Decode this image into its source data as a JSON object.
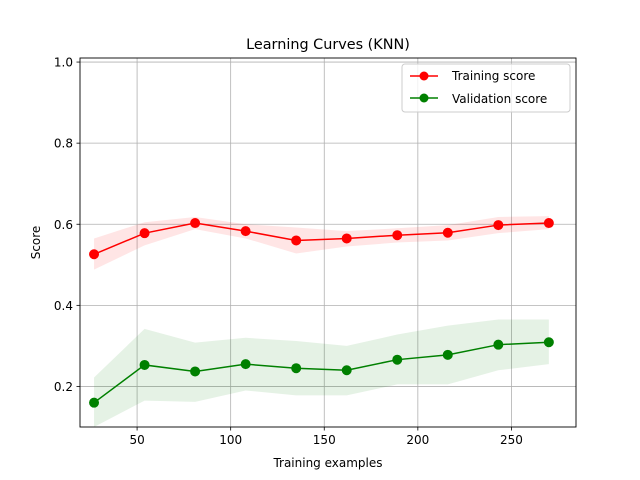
{
  "chart_data": {
    "type": "line",
    "title": "Learning Curves (KNN)",
    "xlabel": "Training examples",
    "ylabel": "Score",
    "xlim": [
      19.5,
      284.5
    ],
    "ylim": [
      0.1,
      1.01
    ],
    "xticks": [
      50,
      100,
      150,
      200,
      250
    ],
    "xtick_labels": [
      "50",
      "100",
      "150",
      "200",
      "250"
    ],
    "yticks": [
      0.2,
      0.4,
      0.6,
      0.8,
      1.0
    ],
    "ytick_labels": [
      "0.2",
      "0.4",
      "0.6",
      "0.8",
      "1.0"
    ],
    "grid": true,
    "legend_position": "top-right",
    "x": [
      27,
      54,
      81,
      108,
      135,
      162,
      189,
      216,
      243,
      270
    ],
    "series": [
      {
        "name": "Training score",
        "color": "#ff0000",
        "values": [
          0.526,
          0.578,
          0.603,
          0.583,
          0.56,
          0.565,
          0.573,
          0.579,
          0.598,
          0.603
        ],
        "band_lower": [
          0.488,
          0.548,
          0.588,
          0.565,
          0.528,
          0.545,
          0.555,
          0.56,
          0.578,
          0.588
        ],
        "band_upper": [
          0.565,
          0.605,
          0.618,
          0.6,
          0.592,
          0.583,
          0.59,
          0.598,
          0.618,
          0.62
        ]
      },
      {
        "name": "Validation score",
        "color": "#008000",
        "values": [
          0.16,
          0.253,
          0.237,
          0.255,
          0.245,
          0.24,
          0.266,
          0.278,
          0.303,
          0.309
        ],
        "band_lower": [
          0.1,
          0.165,
          0.162,
          0.19,
          0.178,
          0.178,
          0.205,
          0.205,
          0.24,
          0.255
        ],
        "band_upper": [
          0.222,
          0.342,
          0.308,
          0.32,
          0.312,
          0.3,
          0.328,
          0.35,
          0.365,
          0.365
        ]
      }
    ]
  }
}
